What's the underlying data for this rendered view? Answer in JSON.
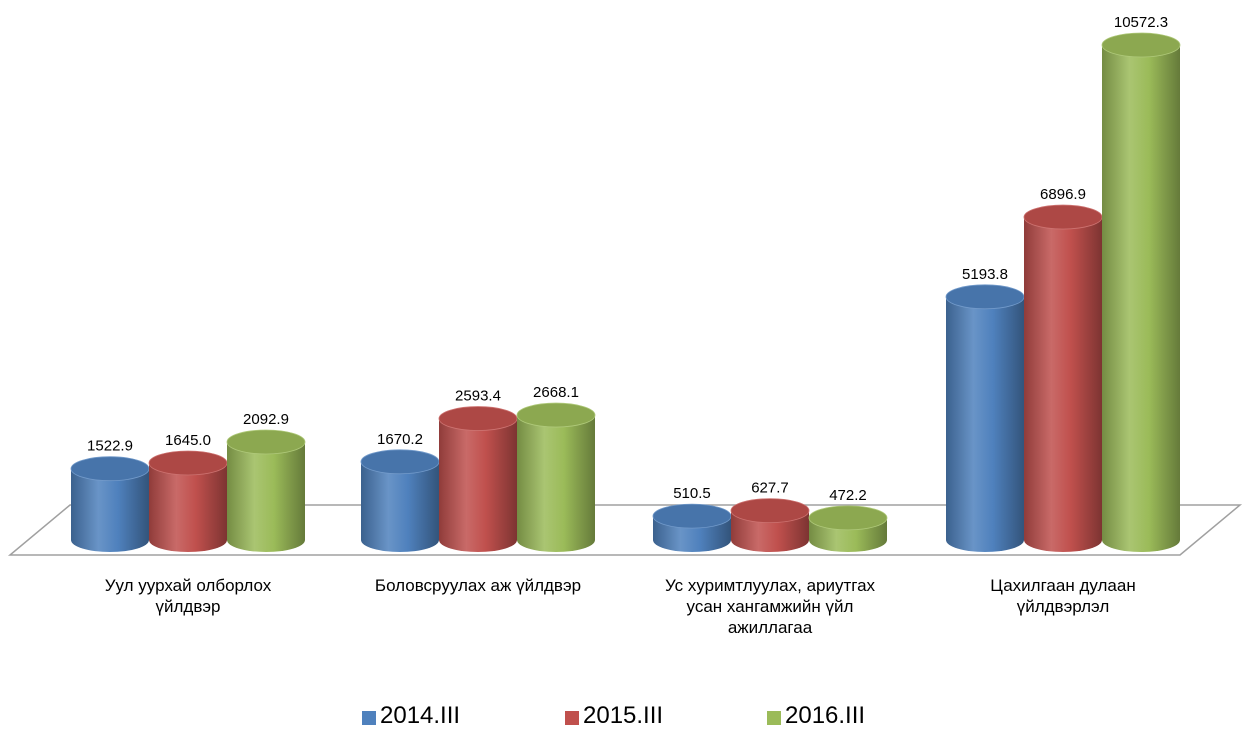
{
  "chart_data": {
    "type": "bar3d",
    "categories": [
      "Уул уурхай олборлох үйлдвэр",
      "Боловсруулах аж үйлдвэр",
      "Ус хуримтлуулах, ариутгах усан хангамжийн үйл ажиллагаа",
      "Цахилгаан дулаан үйлдвэрлэл"
    ],
    "series": [
      {
        "name": "2014.III",
        "color": "#4f81bd",
        "values": [
          1522.9,
          1670.2,
          510.5,
          5193.8
        ],
        "value_labels": [
          "1522.9",
          "1670.2",
          "510.5",
          "5193.8"
        ]
      },
      {
        "name": "2015.III",
        "color": "#c0504d",
        "values": [
          1645.0,
          2593.4,
          627.7,
          6896.9
        ],
        "value_labels": [
          "1645.0",
          "2593.4",
          "627.7",
          "6896.9"
        ]
      },
      {
        "name": "2016.III",
        "color": "#9bbb59",
        "values": [
          2092.9,
          2668.1,
          472.2,
          10572.3
        ],
        "value_labels": [
          "2092.9",
          "2668.1",
          "472.2",
          "10572.3"
        ]
      }
    ],
    "legend": "bottom"
  }
}
